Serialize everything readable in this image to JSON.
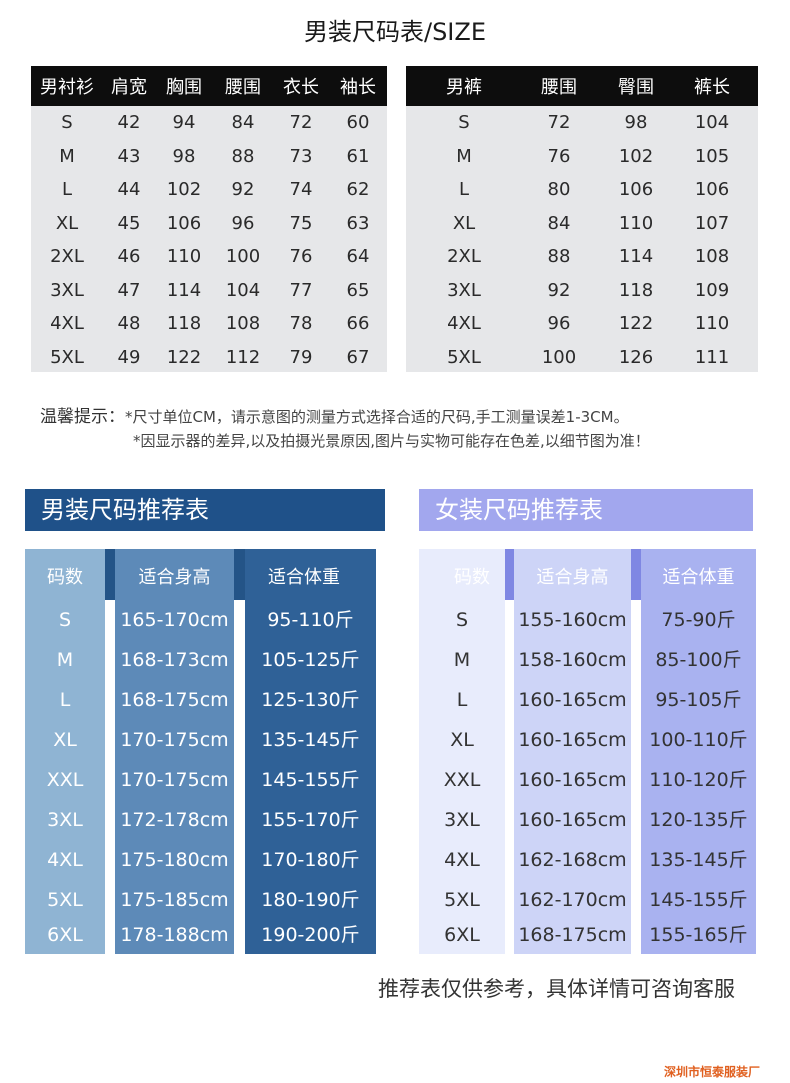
{
  "title": "男装尺码表/SIZE",
  "shirt_table": {
    "headers": [
      "男衬衫",
      "肩宽",
      "胸围",
      "腰围",
      "衣长",
      "袖长"
    ],
    "rows": [
      [
        "S",
        "42",
        "94",
        "84",
        "72",
        "60"
      ],
      [
        "M",
        "43",
        "98",
        "88",
        "73",
        "61"
      ],
      [
        "L",
        "44",
        "102",
        "92",
        "74",
        "62"
      ],
      [
        "XL",
        "45",
        "106",
        "96",
        "75",
        "63"
      ],
      [
        "2XL",
        "46",
        "110",
        "100",
        "76",
        "64"
      ],
      [
        "3XL",
        "47",
        "114",
        "104",
        "77",
        "65"
      ],
      [
        "4XL",
        "48",
        "118",
        "108",
        "78",
        "66"
      ],
      [
        "5XL",
        "49",
        "122",
        "112",
        "79",
        "67"
      ]
    ]
  },
  "pants_table": {
    "headers": [
      "男裤",
      "腰围",
      "臀围",
      "裤长"
    ],
    "rows": [
      [
        "S",
        "72",
        "98",
        "104"
      ],
      [
        "M",
        "76",
        "102",
        "105"
      ],
      [
        "L",
        "80",
        "106",
        "106"
      ],
      [
        "XL",
        "84",
        "110",
        "107"
      ],
      [
        "2XL",
        "88",
        "114",
        "108"
      ],
      [
        "3XL",
        "92",
        "118",
        "109"
      ],
      [
        "4XL",
        "96",
        "122",
        "110"
      ],
      [
        "5XL",
        "100",
        "126",
        "111"
      ]
    ]
  },
  "tips": {
    "label": "温馨提示：",
    "line1": "*尺寸单位CM，请示意图的测量方式选择合适的尺码,手工测量误差1-3CM。",
    "line2": "*因显示器的差异,以及拍摄光景原因,图片与实物可能存在色差,以细节图为准！"
  },
  "men_rec": {
    "banner": "男装尺码推荐表",
    "headers": [
      "码数",
      "适合身高",
      "适合体重"
    ],
    "sizes": [
      "S",
      "M",
      "L",
      "XL",
      "XXL",
      "3XL",
      "4XL",
      "5XL",
      "6XL"
    ],
    "heights": [
      "165-170cm",
      "168-173cm",
      "168-175cm",
      "170-175cm",
      "170-175cm",
      "172-178cm",
      "175-180cm",
      "175-185cm",
      "178-188cm"
    ],
    "weights": [
      "95-110斤",
      "105-125斤",
      "125-130斤",
      "135-145斤",
      "145-155斤",
      "155-170斤",
      "170-180斤",
      "180-190斤",
      "190-200斤"
    ]
  },
  "women_rec": {
    "banner": "女装尺码推荐表",
    "headers": [
      "码数",
      "适合身高",
      "适合体重"
    ],
    "sizes": [
      "S",
      "M",
      "L",
      "XL",
      "XXL",
      "3XL",
      "4XL",
      "5XL",
      "6XL"
    ],
    "heights": [
      "155-160cm",
      "158-160cm",
      "160-165cm",
      "160-165cm",
      "160-165cm",
      "160-165cm",
      "162-168cm",
      "162-170cm",
      "168-175cm"
    ],
    "weights": [
      "75-90斤",
      "85-100斤",
      "95-105斤",
      "100-110斤",
      "110-120斤",
      "120-135斤",
      "135-145斤",
      "145-155斤",
      "155-165斤"
    ]
  },
  "footnote": "推荐表仅供参考，具体详情可咨询客服",
  "watermark": "深圳市恒泰服装厂"
}
